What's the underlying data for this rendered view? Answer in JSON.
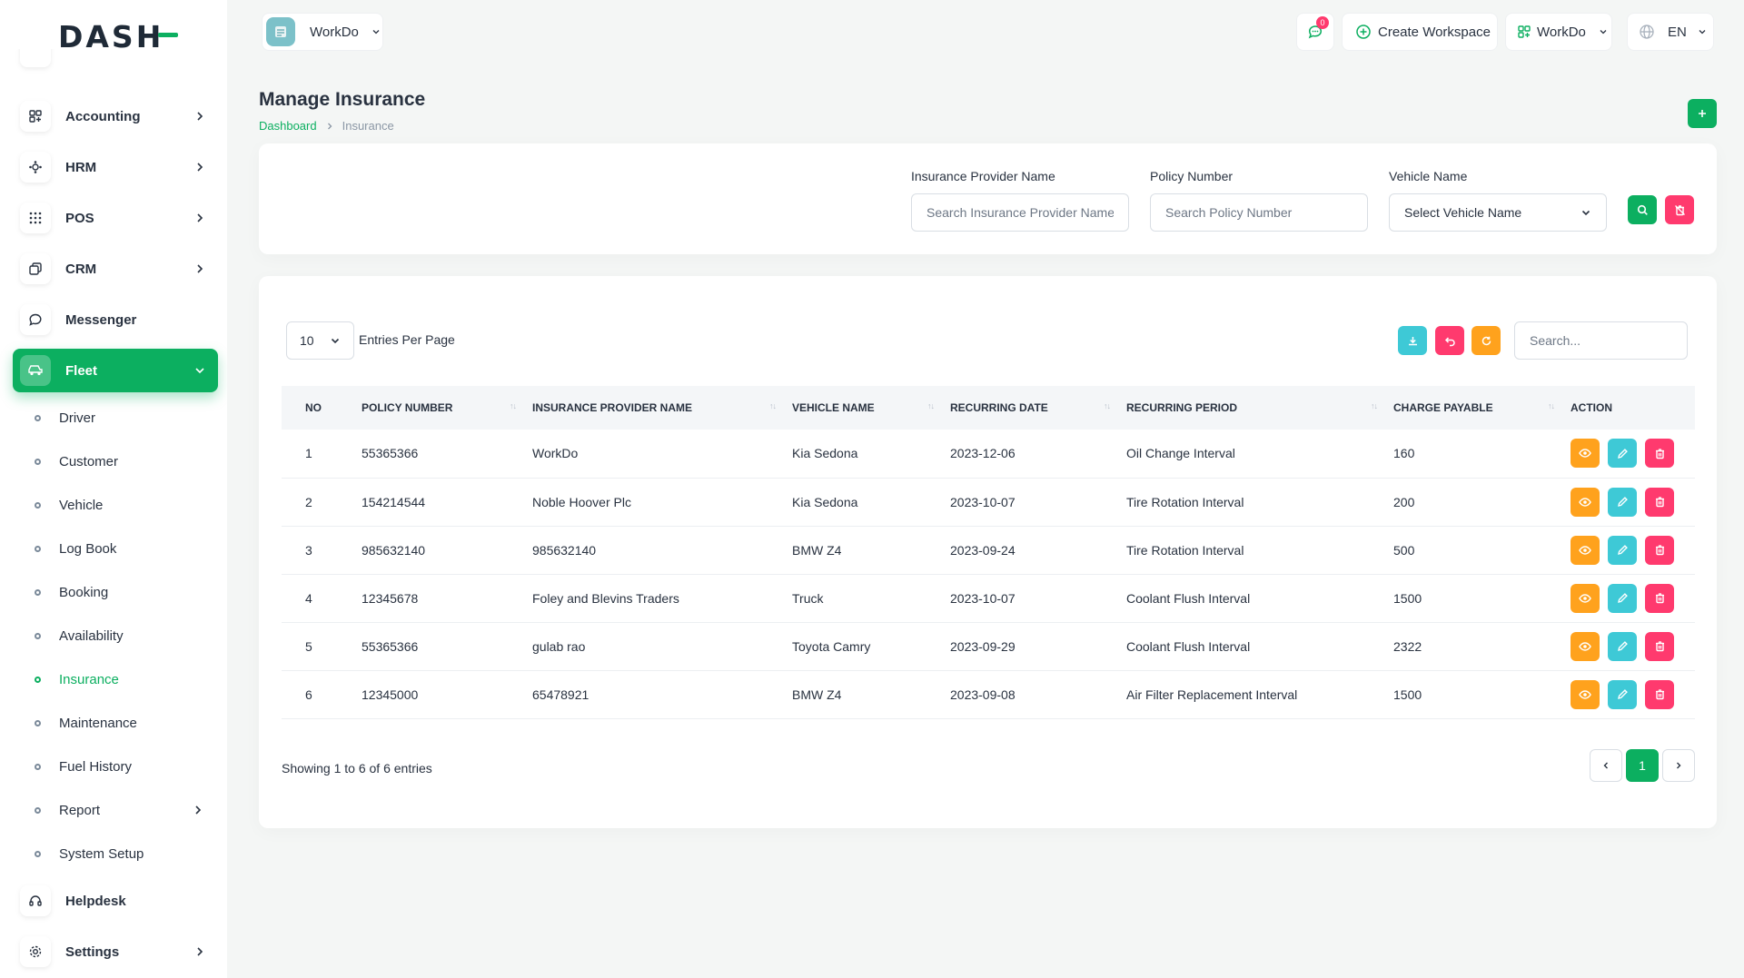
{
  "app": {
    "logo_text": "DASH",
    "brand_color": "#0caf60"
  },
  "header": {
    "workspace": "WorkDo",
    "notification_count": "0",
    "create_workspace": "Create Workspace",
    "user_workspace": "WorkDo",
    "language": "EN"
  },
  "sidebar": {
    "items": [
      {
        "label": "Accounting",
        "icon": "accounting-icon",
        "has_children": true
      },
      {
        "label": "HRM",
        "icon": "hrm-icon",
        "has_children": true
      },
      {
        "label": "POS",
        "icon": "pos-icon",
        "has_children": true
      },
      {
        "label": "CRM",
        "icon": "crm-icon",
        "has_children": true
      },
      {
        "label": "Messenger",
        "icon": "messenger-icon",
        "has_children": false
      },
      {
        "label": "Fleet",
        "icon": "fleet-icon",
        "has_children": true,
        "active": true
      }
    ],
    "fleet_sub": [
      {
        "label": "Driver"
      },
      {
        "label": "Customer"
      },
      {
        "label": "Vehicle"
      },
      {
        "label": "Log Book"
      },
      {
        "label": "Booking"
      },
      {
        "label": "Availability"
      },
      {
        "label": "Insurance",
        "active": true
      },
      {
        "label": "Maintenance"
      },
      {
        "label": "Fuel History"
      },
      {
        "label": "Report",
        "has_children": true
      },
      {
        "label": "System Setup"
      }
    ],
    "bottom_items": [
      {
        "label": "Helpdesk",
        "icon": "helpdesk-icon"
      },
      {
        "label": "Settings",
        "icon": "settings-icon",
        "has_children": true
      }
    ]
  },
  "page": {
    "title": "Manage Insurance",
    "breadcrumb": {
      "home": "Dashboard",
      "current": "Insurance"
    }
  },
  "filters": {
    "provider_label": "Insurance Provider Name",
    "provider_placeholder": "Search Insurance Provider Name",
    "policy_label": "Policy Number",
    "policy_placeholder": "Search Policy Number",
    "vehicle_label": "Vehicle Name",
    "vehicle_selected": "Select Vehicle Name"
  },
  "table_controls": {
    "entries_value": "10",
    "entries_label": "Entries Per Page",
    "search_placeholder": "Search..."
  },
  "table": {
    "columns": [
      "NO",
      "POLICY NUMBER",
      "INSURANCE PROVIDER NAME",
      "VEHICLE NAME",
      "RECURRING DATE",
      "RECURRING PERIOD",
      "CHARGE PAYABLE",
      "ACTION"
    ],
    "rows": [
      {
        "no": "1",
        "policy": "55365366",
        "provider": "WorkDo",
        "vehicle": "Kia Sedona",
        "date": "2023-12-06",
        "period": "Oil Change Interval",
        "charge": "160"
      },
      {
        "no": "2",
        "policy": "154214544",
        "provider": "Noble Hoover Plc",
        "vehicle": "Kia Sedona",
        "date": "2023-10-07",
        "period": "Tire Rotation Interval",
        "charge": "200"
      },
      {
        "no": "3",
        "policy": "985632140",
        "provider": "985632140",
        "vehicle": "BMW Z4",
        "date": "2023-09-24",
        "period": "Tire Rotation Interval",
        "charge": "500"
      },
      {
        "no": "4",
        "policy": "12345678",
        "provider": "Foley and Blevins Traders",
        "vehicle": "Truck",
        "date": "2023-10-07",
        "period": "Coolant Flush Interval",
        "charge": "1500"
      },
      {
        "no": "5",
        "policy": "55365366",
        "provider": "gulab rao",
        "vehicle": "Toyota Camry",
        "date": "2023-09-29",
        "period": "Coolant Flush Interval",
        "charge": "2322"
      },
      {
        "no": "6",
        "policy": "12345000",
        "provider": "65478921",
        "vehicle": "BMW Z4",
        "date": "2023-09-08",
        "period": "Air Filter Replacement Interval",
        "charge": "1500"
      }
    ]
  },
  "footer": {
    "showing": "Showing 1 to 6 of 6 entries",
    "current_page": "1"
  }
}
